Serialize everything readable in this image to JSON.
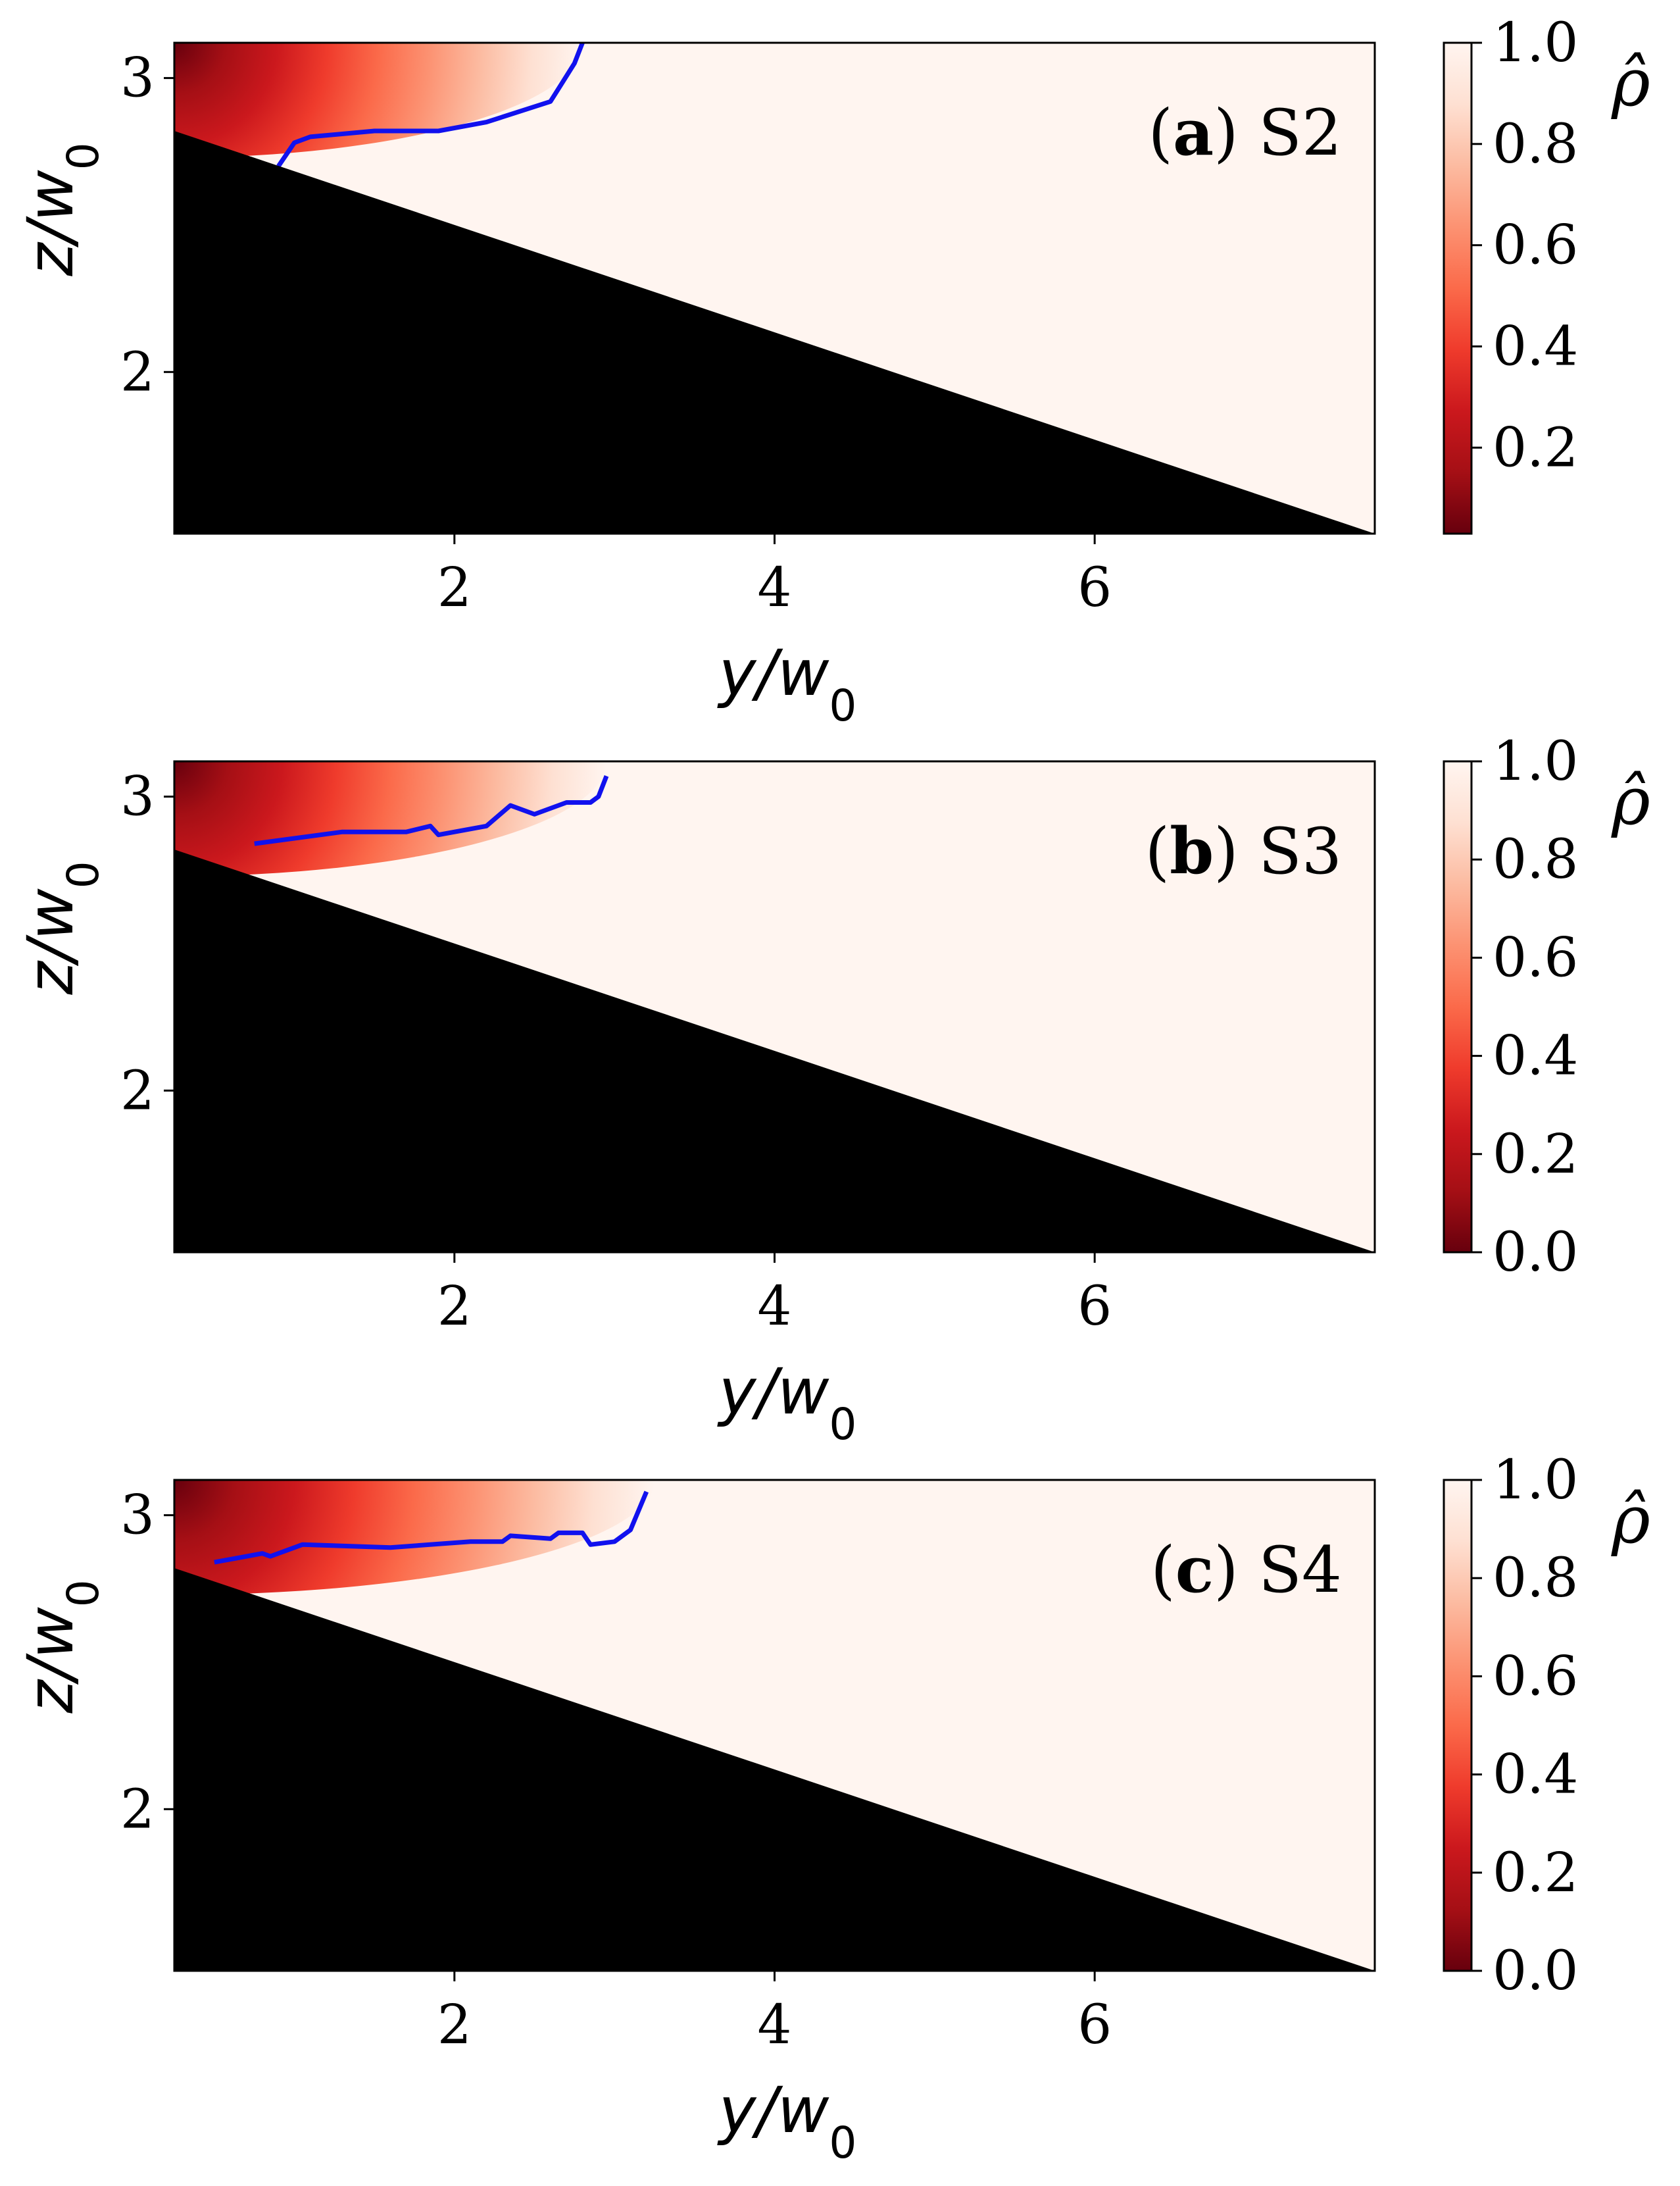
{
  "chart_data": [
    {
      "type": "heatmap",
      "panel_label_letter": "a",
      "panel_label_case": "S2",
      "xlabel": "y/w",
      "xlabel_sub": "0",
      "ylabel": "z/w",
      "ylabel_sub": "0",
      "xlim": [
        0.25,
        7.75
      ],
      "ylim": [
        1.45,
        3.12
      ],
      "xticks": [
        2,
        4,
        6
      ],
      "yticks": [
        2,
        3
      ],
      "wall_line": [
        [
          0.25,
          2.82
        ],
        [
          7.75,
          1.45
        ]
      ],
      "heat_extent_y": 2.8,
      "contour": [
        [
          0.9,
          2.7
        ],
        [
          1.0,
          2.78
        ],
        [
          1.1,
          2.8
        ],
        [
          1.5,
          2.82
        ],
        [
          1.9,
          2.82
        ],
        [
          2.2,
          2.85
        ],
        [
          2.6,
          2.92
        ],
        [
          2.75,
          3.05
        ],
        [
          2.8,
          3.12
        ]
      ],
      "colorbar": {
        "title": "ρ̂",
        "min": 0.03,
        "max": 1.0,
        "ticks": [
          0.2,
          0.4,
          0.6,
          0.8,
          1.0
        ],
        "tick_labels": [
          "0.2",
          "0.4",
          "0.6",
          "0.8",
          "1.0"
        ],
        "colors": [
          "#67000d",
          "#a50f15",
          "#cb181d",
          "#ef3b2c",
          "#fb6a4a",
          "#fc9272",
          "#fcbba1",
          "#fee0d2",
          "#fff5f0"
        ]
      },
      "wall_color": "#000000",
      "contour_color": "#1111ee"
    },
    {
      "type": "heatmap",
      "panel_label_letter": "b",
      "panel_label_case": "S3",
      "xlabel": "y/w",
      "xlabel_sub": "0",
      "ylabel": "z/w",
      "ylabel_sub": "0",
      "xlim": [
        0.25,
        7.75
      ],
      "ylim": [
        1.45,
        3.12
      ],
      "xticks": [
        2,
        4,
        6
      ],
      "yticks": [
        2,
        3
      ],
      "wall_line": [
        [
          0.25,
          2.82
        ],
        [
          7.75,
          1.45
        ]
      ],
      "heat_extent_y": 2.95,
      "contour": [
        [
          0.75,
          2.84
        ],
        [
          1.3,
          2.88
        ],
        [
          1.7,
          2.88
        ],
        [
          1.85,
          2.9
        ],
        [
          1.9,
          2.87
        ],
        [
          2.2,
          2.9
        ],
        [
          2.35,
          2.97
        ],
        [
          2.5,
          2.94
        ],
        [
          2.7,
          2.98
        ],
        [
          2.85,
          2.98
        ],
        [
          2.9,
          3.0
        ],
        [
          2.95,
          3.07
        ]
      ],
      "colorbar": {
        "title": "ρ̂",
        "min": 0.0,
        "max": 1.0,
        "ticks": [
          0.0,
          0.2,
          0.4,
          0.6,
          0.8,
          1.0
        ],
        "tick_labels": [
          "0.0",
          "0.2",
          "0.4",
          "0.6",
          "0.8",
          "1.0"
        ],
        "colors": [
          "#67000d",
          "#a50f15",
          "#cb181d",
          "#ef3b2c",
          "#fb6a4a",
          "#fc9272",
          "#fcbba1",
          "#fee0d2",
          "#fff5f0"
        ]
      },
      "wall_color": "#000000",
      "contour_color": "#1111ee"
    },
    {
      "type": "heatmap",
      "panel_label_letter": "c",
      "panel_label_case": "S4",
      "xlabel": "y/w",
      "xlabel_sub": "0",
      "ylabel": "z/w",
      "ylabel_sub": "0",
      "xlim": [
        0.25,
        7.75
      ],
      "ylim": [
        1.45,
        3.12
      ],
      "xticks": [
        2,
        4,
        6
      ],
      "yticks": [
        2,
        3
      ],
      "wall_line": [
        [
          0.25,
          2.82
        ],
        [
          7.75,
          1.45
        ]
      ],
      "heat_extent_y": 3.25,
      "contour": [
        [
          0.5,
          2.84
        ],
        [
          0.8,
          2.87
        ],
        [
          0.85,
          2.86
        ],
        [
          1.05,
          2.9
        ],
        [
          1.6,
          2.89
        ],
        [
          2.1,
          2.91
        ],
        [
          2.3,
          2.91
        ],
        [
          2.35,
          2.93
        ],
        [
          2.6,
          2.92
        ],
        [
          2.65,
          2.94
        ],
        [
          2.8,
          2.94
        ],
        [
          2.85,
          2.9
        ],
        [
          3.0,
          2.91
        ],
        [
          3.1,
          2.95
        ],
        [
          3.2,
          3.08
        ]
      ],
      "colorbar": {
        "title": "ρ̂",
        "min": 0.0,
        "max": 1.0,
        "ticks": [
          0.0,
          0.2,
          0.4,
          0.6,
          0.8,
          1.0
        ],
        "tick_labels": [
          "0.0",
          "0.2",
          "0.4",
          "0.6",
          "0.8",
          "1.0"
        ],
        "colors": [
          "#67000d",
          "#a50f15",
          "#cb181d",
          "#ef3b2c",
          "#fb6a4a",
          "#fc9272",
          "#fcbba1",
          "#fee0d2",
          "#fff5f0"
        ]
      },
      "wall_color": "#000000",
      "contour_color": "#1111ee"
    }
  ]
}
